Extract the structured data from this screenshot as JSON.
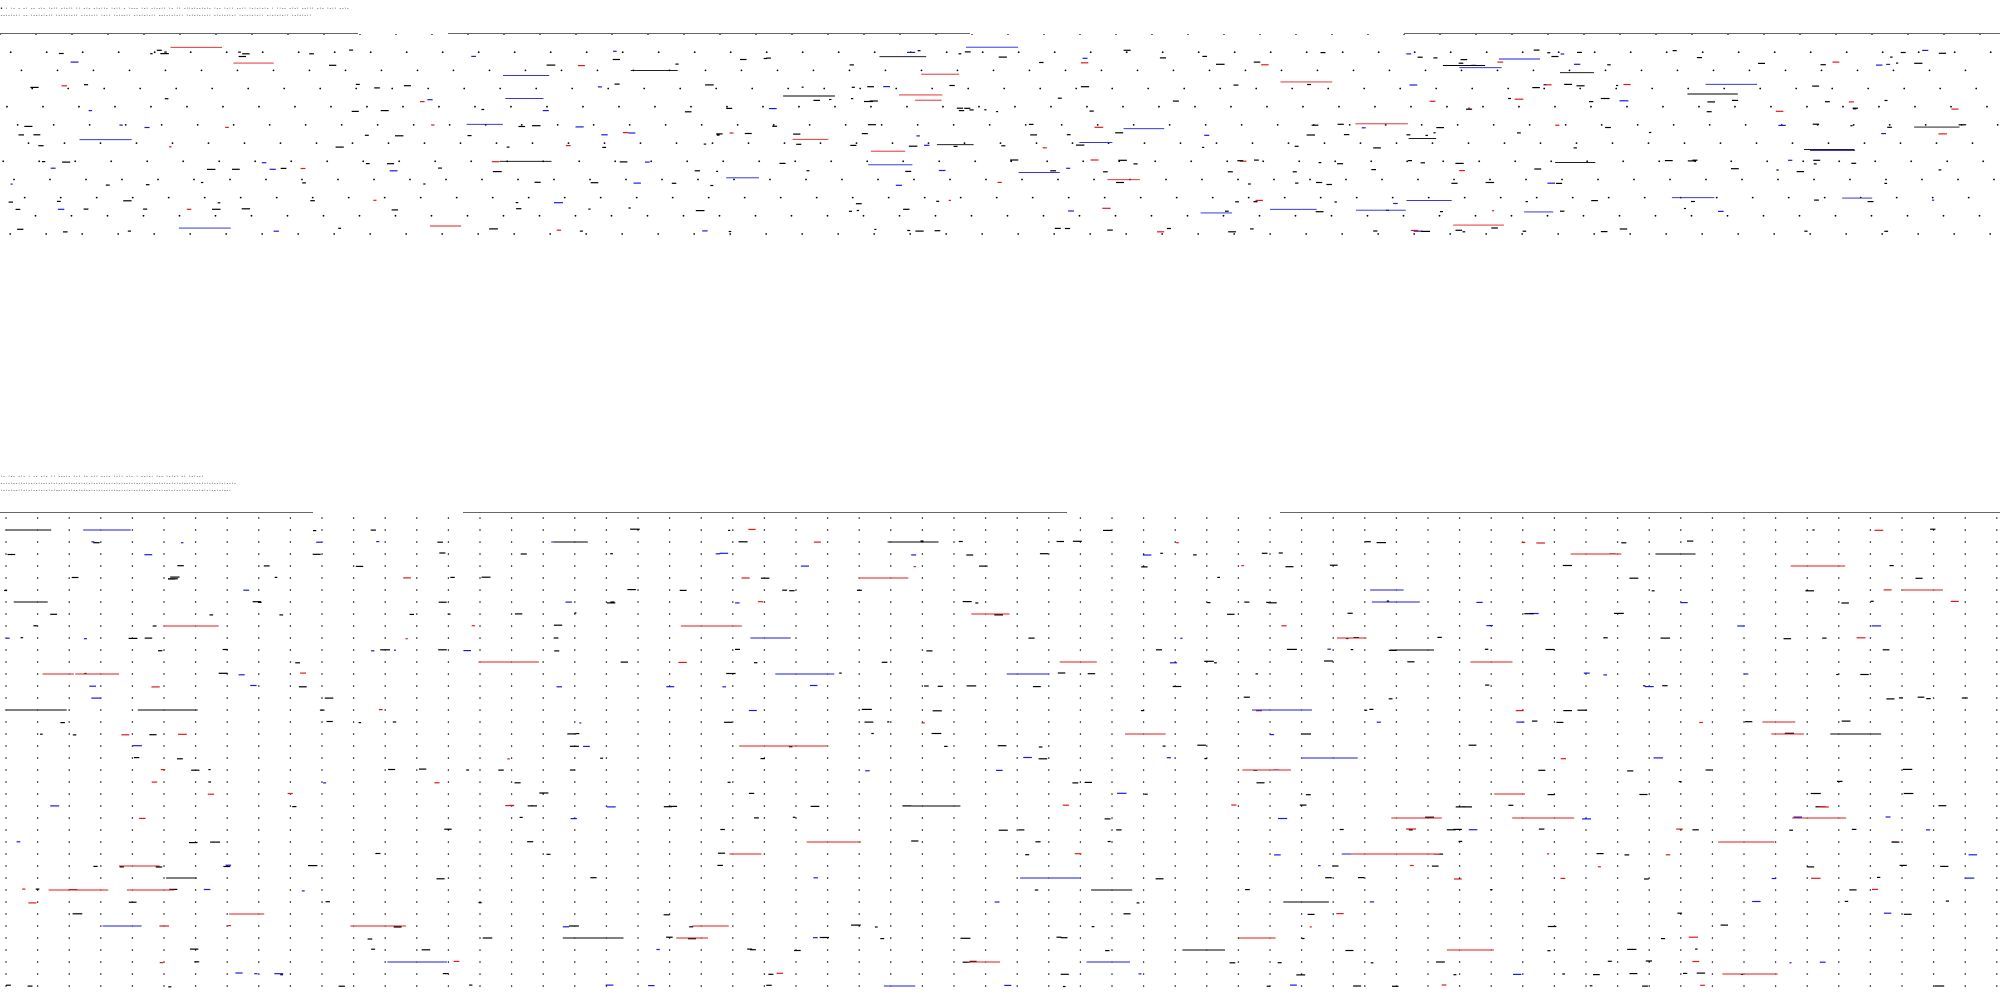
{
  "colors": {
    "ink": "#000000",
    "red": "#e01818",
    "blue": "#1a1ae6",
    "rule": "#666666"
  },
  "top_panel": {
    "header_line_1": "• · ·- - -·  -- -·- ·-·· -·-·· ·· -·- -·-··- ·-·· - ·--- ·-· -·--·· ·- ·· -··-·--·-·- ·-- ·-·· --·· ·-·-·-·- · ··-- -·-· --··· -·- ·-·· --·-",
    "header_line_2": "--·-·-·· -- ·--·-·-·· ·-··-·-·· -·-·-·· ·-·· ·-·--·· -·-·-·-·· --·-·-·-·· ·-·-·-·-·· -·-·-··-· ·-·-·-·-·· -·-·-·-·· ·-·-·-··",
    "staff_count": 14,
    "blocks": 6
  },
  "bottom_panel": {
    "header_line_1": "·- ·--  -·- ·   -- -·-  ·· ---·- ·-·  ·- -··  --·-  ·-·· -·- · --·-·  ·-- ·-·-·  -·  ·-·--·",
    "header_line_2": "--·-·--··-·--·-·--·-·-·--·-·--·-·-·-·--·-·--·-·-·--·-·--·-·-·--·-·--·-·-·--·-·--·-·-·--·-·--·-",
    "header_line_3": "·-·-·--··-·-·--·-·-·-·--·-·-·--·-·--·-·-·--·-·--·-·-·--·-·--·-·-·--·-·--·-·-·--·-·-·--·-·--·",
    "columns": 62,
    "blocks": 4
  }
}
